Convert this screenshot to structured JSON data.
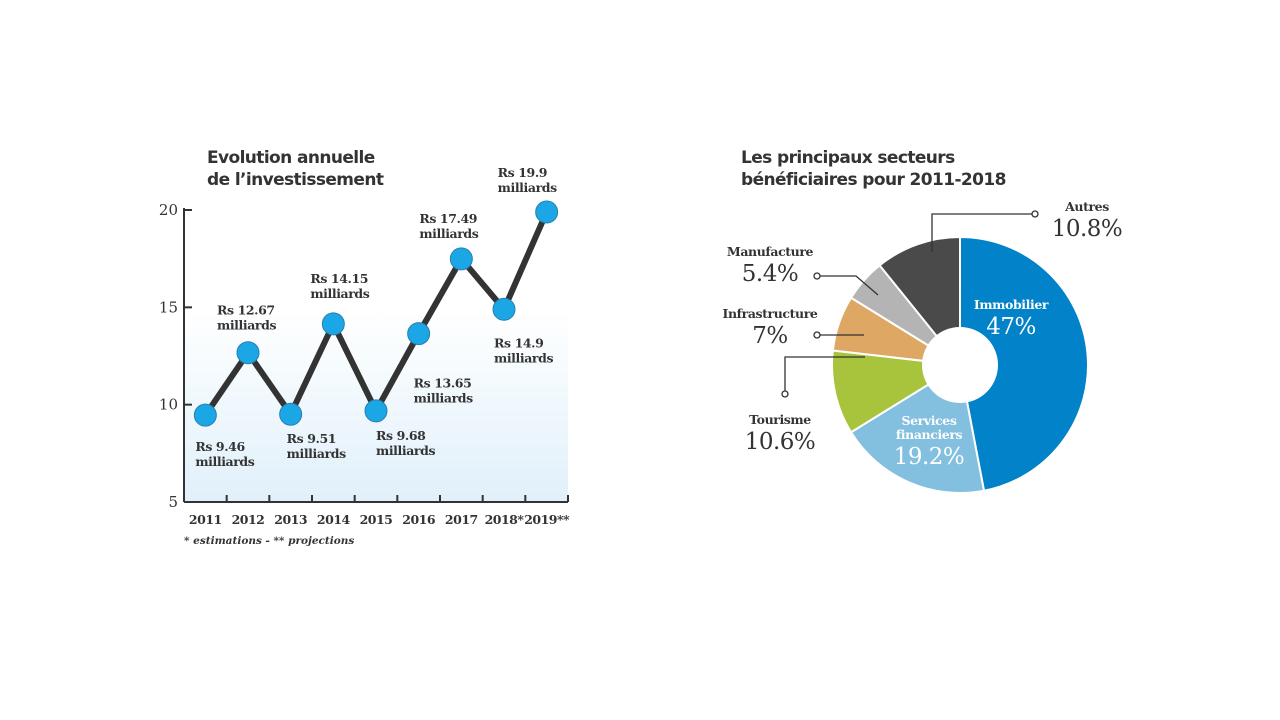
{
  "chart_data": [
    {
      "type": "line",
      "title": [
        "Evolution annuelle",
        "de l’investissement"
      ],
      "categories": [
        "2011",
        "2012",
        "2013",
        "2014",
        "2015",
        "2016",
        "2017",
        "2018*",
        "2019**"
      ],
      "values": [
        9.46,
        12.67,
        9.51,
        14.15,
        9.68,
        13.65,
        17.49,
        14.9,
        19.9
      ],
      "data_labels": [
        [
          "Rs 9.46",
          "milliards"
        ],
        [
          "Rs 12.67",
          "milliards"
        ],
        [
          "Rs 9.51",
          "milliards"
        ],
        [
          "Rs 14.15",
          "milliards"
        ],
        [
          "Rs 9.68",
          "milliards"
        ],
        [
          "Rs 13.65",
          "milliards"
        ],
        [
          "Rs 17.49",
          "milliards"
        ],
        [
          "Rs 14.9",
          "milliards"
        ],
        [
          "Rs 19.9",
          "milliards"
        ]
      ],
      "yticks": [
        5,
        10,
        15,
        20
      ],
      "ylim": [
        5,
        20
      ],
      "footnote": "* estimations  -  ** projections",
      "colors": {
        "line": "#333333",
        "marker": "#1ba6e6",
        "background_gradient": "#e2f1fa"
      },
      "grid": false
    },
    {
      "type": "pie",
      "donut": true,
      "title": [
        "Les principaux secteurs",
        "bénéficiaires pour 2011-2018"
      ],
      "slices": [
        {
          "label": "Immobilier",
          "label_lines": [
            "Immobilier"
          ],
          "value": 47,
          "display": "47%",
          "color": "#0282c8"
        },
        {
          "label": "Services financiers",
          "label_lines": [
            "Services",
            "financiers"
          ],
          "value": 19.2,
          "display": "19.2%",
          "color": "#83bfdf"
        },
        {
          "label": "Tourisme",
          "label_lines": [
            "Tourisme"
          ],
          "value": 10.6,
          "display": "10.6%",
          "color": "#a8c43c"
        },
        {
          "label": "Infrastructure",
          "label_lines": [
            "Infrastructure"
          ],
          "value": 7,
          "display": "7%",
          "color": "#dea864"
        },
        {
          "label": "Manufacture",
          "label_lines": [
            "Manufacture"
          ],
          "value": 5.4,
          "display": "5.4%",
          "color": "#b4b4b4"
        },
        {
          "label": "Autres",
          "label_lines": [
            "Autres"
          ],
          "value": 10.8,
          "display": "10.8%",
          "color": "#4a4a4a"
        }
      ]
    }
  ]
}
